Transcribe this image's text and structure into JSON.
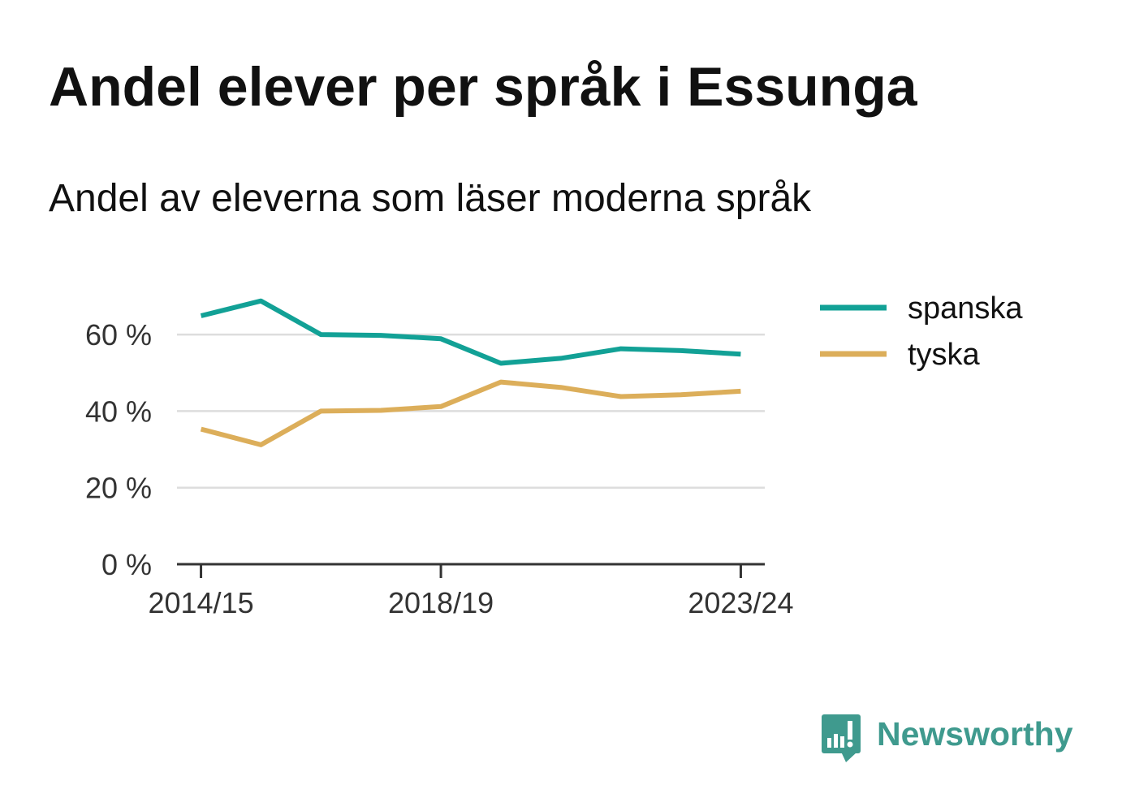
{
  "title": "Andel elever per språk i Essunga",
  "subtitle": "Andel av eleverna som läser moderna språk",
  "brand": {
    "name": "Newsworthy",
    "icon": "newsworthy-logo-icon",
    "color": "#3f9a8e"
  },
  "colors": {
    "text": "#111111",
    "tick_text": "#333333",
    "grid": "#dddddd",
    "axis": "#333333",
    "background": "#ffffff"
  },
  "chart_data": {
    "type": "line",
    "x": [
      2014,
      2015,
      2016,
      2017,
      2018,
      2019,
      2020,
      2021,
      2022,
      2023
    ],
    "x_ticks": [
      {
        "value": 2014,
        "label": "2014/15"
      },
      {
        "value": 2018,
        "label": "2018/19"
      },
      {
        "value": 2023,
        "label": "2023/24"
      }
    ],
    "xlim": [
      2013.6,
      2023.4
    ],
    "y_ticks": [
      {
        "value": 0,
        "label": "0 %"
      },
      {
        "value": 20,
        "label": "20 %"
      },
      {
        "value": 40,
        "label": "40 %"
      },
      {
        "value": 60,
        "label": "60 %"
      }
    ],
    "ylim": [
      0,
      70
    ],
    "grid": true,
    "legend": "top-right",
    "series": [
      {
        "name": "spanska",
        "color": "#12a196",
        "values": [
          64.9,
          68.8,
          60.0,
          59.8,
          58.9,
          52.5,
          53.8,
          56.3,
          55.8,
          54.9
        ]
      },
      {
        "name": "tyska",
        "color": "#dcae5a",
        "values": [
          35.3,
          31.2,
          40.0,
          40.2,
          41.2,
          47.6,
          46.2,
          43.8,
          44.3,
          45.2
        ]
      }
    ]
  }
}
